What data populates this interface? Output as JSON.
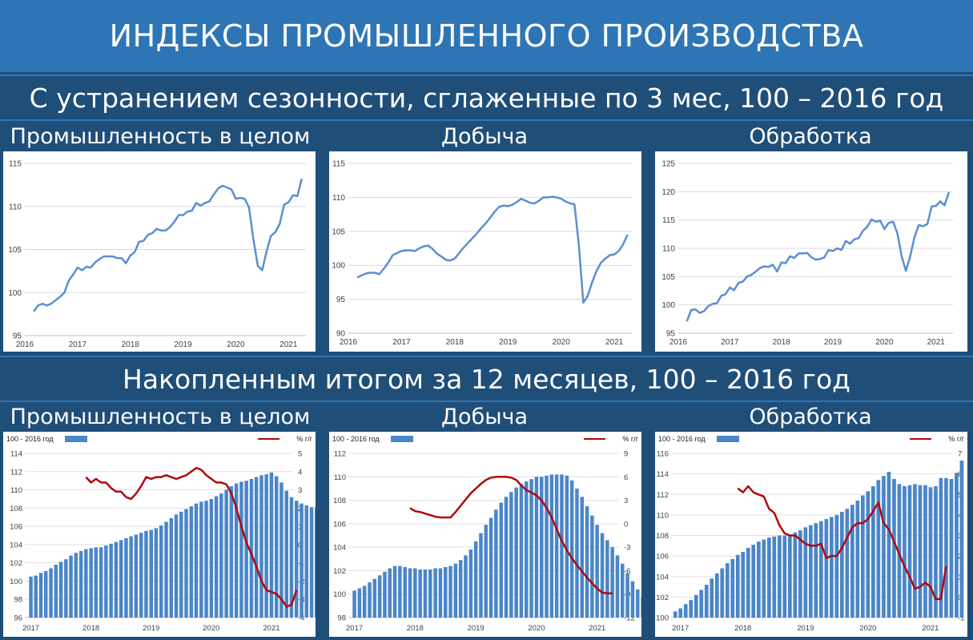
{
  "header": {
    "title": "ИНДЕКСЫ ПРОМЫШЛЕННОГО ПРОИЗВОДСТВА"
  },
  "section1": {
    "subtitle": "С устранением сезонности, сглаженные по 3 мес, 100 – 2016 год"
  },
  "section2": {
    "subtitle": "Накопленным итогом за 12 месяцев, 100 – 2016 год"
  },
  "labels": {
    "industry": "Промышленность в целом",
    "mining": "Добыча",
    "manufacturing": "Обработка"
  },
  "colors": {
    "line": "#5b8fd1",
    "bar": "#4a86c8",
    "red": "#b0080e",
    "band": "#2e75b6",
    "dark": "#1f4e79"
  },
  "chart_data": [
    {
      "type": "line",
      "title": "Промышленность в целом",
      "x_start": 2016.167,
      "step": 0.0833333,
      "ylim": [
        95,
        115
      ],
      "yticks": [
        95,
        100,
        105,
        110,
        115
      ],
      "xticks": [
        "2016",
        "2017",
        "2018",
        "2019",
        "2020",
        "2021"
      ],
      "x_range": [
        2016,
        2021.33
      ],
      "values": [
        97.8,
        98.5,
        98.7,
        98.5,
        98.7,
        99.1,
        99.5,
        100.0,
        101.4,
        102.1,
        102.9,
        102.6,
        103.0,
        102.9,
        103.5,
        103.9,
        104.2,
        104.2,
        104.2,
        104.0,
        104.0,
        103.4,
        104.3,
        104.7,
        105.9,
        106.0,
        106.7,
        106.9,
        107.4,
        107.2,
        107.2,
        107.6,
        108.2,
        109.0,
        109.0,
        109.4,
        109.5,
        110.4,
        110.1,
        110.4,
        110.6,
        111.4,
        112.1,
        112.4,
        112.2,
        112.0,
        110.9,
        111.0,
        110.9,
        109.9,
        106.2,
        103.1,
        102.6,
        104.8,
        106.6,
        107.0,
        108.0,
        110.2,
        110.5,
        111.3,
        111.2,
        113.2
      ]
    },
    {
      "type": "line",
      "title": "Добыча",
      "x_start": 2016.167,
      "step": 0.0833333,
      "ylim": [
        90,
        115
      ],
      "yticks": [
        90,
        95,
        100,
        105,
        110,
        115
      ],
      "xticks": [
        "2016",
        "2017",
        "2018",
        "2019",
        "2020",
        "2021"
      ],
      "x_range": [
        2016,
        2021.33
      ],
      "values": [
        98.2,
        98.5,
        98.8,
        98.9,
        98.9,
        98.7,
        99.5,
        100.4,
        101.5,
        101.8,
        102.1,
        102.2,
        102.2,
        102.1,
        102.5,
        102.8,
        102.9,
        102.4,
        101.7,
        101.3,
        100.8,
        100.7,
        101.0,
        101.8,
        102.6,
        103.3,
        104.0,
        104.7,
        105.5,
        106.2,
        107.0,
        107.9,
        108.6,
        108.8,
        108.7,
        108.9,
        109.3,
        109.8,
        109.5,
        109.2,
        109.1,
        109.5,
        110.0,
        110.0,
        110.1,
        110.0,
        109.8,
        109.4,
        109.1,
        109.0,
        103.0,
        94.5,
        95.5,
        97.5,
        99.2,
        100.4,
        101.0,
        101.5,
        101.6,
        102.1,
        103.1,
        104.5
      ]
    },
    {
      "type": "line",
      "title": "Обработка",
      "x_start": 2016.167,
      "step": 0.0833333,
      "ylim": [
        95,
        125
      ],
      "yticks": [
        95,
        100,
        105,
        110,
        115,
        120,
        125
      ],
      "xticks": [
        "2016",
        "2017",
        "2018",
        "2019",
        "2020",
        "2021"
      ],
      "x_range": [
        2016,
        2021.33
      ],
      "values": [
        97.1,
        99.1,
        99.2,
        98.6,
        98.9,
        99.8,
        100.2,
        100.3,
        101.6,
        101.9,
        103.1,
        102.6,
        103.9,
        104.1,
        105.0,
        105.3,
        105.9,
        106.5,
        106.8,
        106.7,
        107.1,
        105.9,
        107.5,
        107.4,
        108.6,
        108.3,
        109.1,
        109.1,
        109.2,
        108.4,
        108.0,
        108.1,
        108.4,
        109.7,
        109.5,
        110.0,
        109.7,
        111.3,
        110.8,
        111.6,
        111.8,
        113.1,
        113.8,
        115.1,
        114.7,
        114.9,
        113.4,
        114.5,
        114.7,
        112.7,
        108.6,
        106.0,
        108.6,
        112.0,
        114.1,
        113.9,
        114.3,
        117.4,
        117.5,
        118.3,
        117.6,
        119.9
      ]
    },
    {
      "type": "bar+line",
      "title": "Промышленность в целом",
      "legend": {
        "bars": "100 - 2016 год",
        "line": "% г/г"
      },
      "x_start": 2017.0,
      "step": 0.0833333,
      "ylim": [
        96,
        114
      ],
      "yticks": [
        96,
        98,
        100,
        102,
        104,
        106,
        108,
        110,
        112,
        114
      ],
      "y2lim": [
        -4,
        5
      ],
      "y2ticks": [
        -4,
        -3,
        -2,
        -1,
        0,
        1,
        2,
        3,
        4,
        5
      ],
      "xticks": [
        "2017",
        "2018",
        "2019",
        "2020",
        "2021"
      ],
      "x_range": [
        2016.9,
        2021.36
      ],
      "bars": [
        100.5,
        100.6,
        100.9,
        101.1,
        101.4,
        101.8,
        102.1,
        102.4,
        102.8,
        103.1,
        103.3,
        103.5,
        103.6,
        103.7,
        103.7,
        103.9,
        104.1,
        104.3,
        104.5,
        104.7,
        104.9,
        105.1,
        105.3,
        105.5,
        105.6,
        105.8,
        106.1,
        106.5,
        106.9,
        107.3,
        107.6,
        107.9,
        108.2,
        108.5,
        108.7,
        108.8,
        109.0,
        109.3,
        109.6,
        110.0,
        110.4,
        110.7,
        110.9,
        111.0,
        111.2,
        111.4,
        111.6,
        111.7,
        111.9,
        111.5,
        110.8,
        109.9,
        109.2,
        108.8,
        108.5,
        108.3,
        108.1,
        108.1,
        108.2,
        108.0,
        107.8,
        108.0,
        108.6
      ],
      "line_x_start": 2017.917,
      "line": [
        3.7,
        3.4,
        3.6,
        3.4,
        3.4,
        3.1,
        2.9,
        2.9,
        2.6,
        2.5,
        2.8,
        3.2,
        3.7,
        3.6,
        3.7,
        3.7,
        3.8,
        3.7,
        3.6,
        3.7,
        3.8,
        4.0,
        4.2,
        4.1,
        3.8,
        3.6,
        3.4,
        3.4,
        3.3,
        2.8,
        2.0,
        1.0,
        0.1,
        -0.5,
        -1.2,
        -2.0,
        -2.5,
        -2.6,
        -2.7,
        -3.0,
        -3.4,
        -3.3,
        -2.5
      ]
    },
    {
      "type": "bar+line",
      "title": "Добыча",
      "legend": {
        "bars": "100 - 2016 год",
        "line": "% г/г"
      },
      "x_start": 2017.0,
      "step": 0.0833333,
      "ylim": [
        98,
        112
      ],
      "yticks": [
        98,
        100,
        102,
        104,
        106,
        108,
        110,
        112
      ],
      "y2lim": [
        -12,
        9
      ],
      "y2ticks": [
        -12,
        -9,
        -6,
        -3,
        0,
        3,
        6,
        9
      ],
      "xticks": [
        "2017",
        "2018",
        "2019",
        "2020",
        "2021"
      ],
      "x_range": [
        2016.9,
        2021.36
      ],
      "bars": [
        100.3,
        100.5,
        100.7,
        101.0,
        101.3,
        101.6,
        101.9,
        102.2,
        102.4,
        102.4,
        102.3,
        102.2,
        102.2,
        102.1,
        102.1,
        102.1,
        102.2,
        102.2,
        102.3,
        102.4,
        102.6,
        102.9,
        103.3,
        103.8,
        104.5,
        105.2,
        105.9,
        106.5,
        107.2,
        107.8,
        108.3,
        108.7,
        109.1,
        109.4,
        109.6,
        109.8,
        110.0,
        110.0,
        110.1,
        110.2,
        110.2,
        110.2,
        110.1,
        109.7,
        109.0,
        108.3,
        107.5,
        106.7,
        105.9,
        105.2,
        104.6,
        104.0,
        103.3,
        102.6,
        101.8,
        101.1,
        100.4,
        99.8,
        99.2,
        99.0,
        99.0,
        98.9
      ],
      "line_x_start": 2017.917,
      "line": [
        2.0,
        1.6,
        1.5,
        1.3,
        1.1,
        0.9,
        0.8,
        0.8,
        0.8,
        1.5,
        2.3,
        3.1,
        3.9,
        4.5,
        5.1,
        5.6,
        5.9,
        6.0,
        6.0,
        6.0,
        5.9,
        5.6,
        4.9,
        4.3,
        4.0,
        3.6,
        3.0,
        2.0,
        0.8,
        -0.7,
        -2.2,
        -3.4,
        -4.4,
        -5.3,
        -6.1,
        -6.9,
        -7.6,
        -8.3,
        -8.8,
        -8.9,
        -8.9
      ]
    },
    {
      "type": "bar+line",
      "title": "Обработка",
      "legend": {
        "bars": "100 - 2016 год",
        "line": "% г/г"
      },
      "x_start": 2016.917,
      "step": 0.0833333,
      "ylim": [
        100,
        116
      ],
      "yticks": [
        100,
        102,
        104,
        106,
        108,
        110,
        112,
        114,
        116
      ],
      "y2lim": [
        -1,
        7
      ],
      "y2ticks": [
        -1,
        0,
        1,
        2,
        3,
        4,
        5,
        6,
        7
      ],
      "xticks": [
        "2017",
        "2018",
        "2019",
        "2020",
        "2021"
      ],
      "x_range": [
        2016.85,
        2021.36
      ],
      "bars": [
        100.6,
        100.9,
        101.3,
        101.7,
        102.2,
        102.7,
        103.2,
        103.8,
        104.3,
        104.8,
        105.3,
        105.7,
        106.1,
        106.4,
        106.8,
        107.1,
        107.4,
        107.6,
        107.8,
        107.9,
        108.0,
        108.0,
        108.1,
        108.3,
        108.5,
        108.8,
        109.0,
        109.2,
        109.4,
        109.6,
        109.8,
        110.0,
        110.3,
        110.6,
        111.0,
        111.4,
        111.9,
        112.3,
        112.8,
        113.4,
        113.8,
        114.2,
        113.5,
        113.0,
        112.8,
        112.9,
        113.0,
        112.9,
        112.9,
        112.7,
        112.8,
        113.6,
        113.6,
        113.5,
        114.1,
        115.3
      ],
      "line_x_start": 2017.917,
      "line": [
        5.3,
        5.1,
        5.4,
        5.1,
        5.0,
        4.9,
        4.3,
        4.1,
        3.5,
        3.1,
        3.0,
        3.0,
        2.8,
        2.6,
        2.5,
        2.5,
        2.6,
        1.9,
        2.0,
        2.0,
        2.4,
        2.9,
        3.4,
        3.6,
        3.6,
        3.8,
        4.2,
        4.6,
        3.6,
        3.3,
        2.7,
        2.1,
        1.5,
        1.0,
        0.4,
        0.5,
        0.7,
        0.5,
        -0.1,
        -0.1,
        1.5
      ]
    }
  ]
}
